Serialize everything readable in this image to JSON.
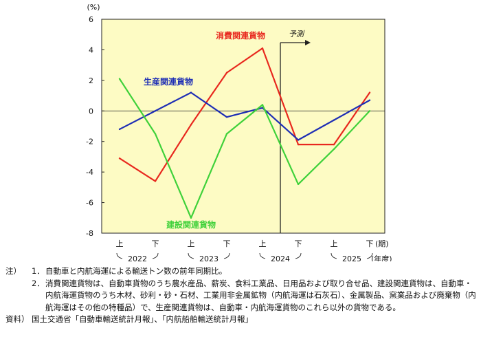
{
  "chart_data": {
    "type": "line",
    "unit_label": "(%)",
    "x_tick_labels": [
      "上",
      "下",
      "上",
      "下",
      "上",
      "下",
      "上",
      "下"
    ],
    "x_suffix": "(期)",
    "year_labels": [
      "2022",
      "2023",
      "2024",
      "2025"
    ],
    "year_suffix": "(年度)",
    "ylim": [
      -8,
      6
    ],
    "yticks": [
      6,
      4,
      2,
      0,
      -2,
      -4,
      -6,
      -8
    ],
    "forecast_label": "予測",
    "forecast_start_index": 4.5,
    "series": [
      {
        "name": "消費関連貨物",
        "color": "#e8281e",
        "values": [
          -3.1,
          -4.6,
          -0.9,
          2.5,
          4.1,
          -2.2,
          -2.2,
          1.2
        ]
      },
      {
        "name": "生産関連貨物",
        "color": "#1f2fb5",
        "values": [
          -1.2,
          0.0,
          1.2,
          -0.4,
          0.2,
          -1.9,
          -0.6,
          0.7
        ]
      },
      {
        "name": "建設関連貨物",
        "color": "#3fd13a",
        "values": [
          2.1,
          -1.5,
          -7.0,
          -1.5,
          0.4,
          -4.8,
          -2.5,
          0.0
        ]
      }
    ]
  },
  "notes": {
    "label": "注）",
    "items": [
      {
        "num": "1．",
        "text": "自動車と内航海運による輸送トン数の前年同期比。"
      },
      {
        "num": "2．",
        "text": "消費関連貨物は、自動車貨物のうち農水産品、薪炭、食料工業品、日用品および取り合せ品、建設関連貨物は、自動車・内航海運貨物のうち木材、砂利・砂・石材、工業用非金属鉱物（内航海運は石灰石）、金属製品、窯業品および廃棄物（内航海運はその他の特種品）で、生産関連貨物は、自動車・内航海運貨物のこれら以外の貨物である。"
      }
    ]
  },
  "source": {
    "label": "資料）",
    "text": "国土交通省「自動車輸送統計月報」、「内航船舶輸送統計月報」"
  }
}
